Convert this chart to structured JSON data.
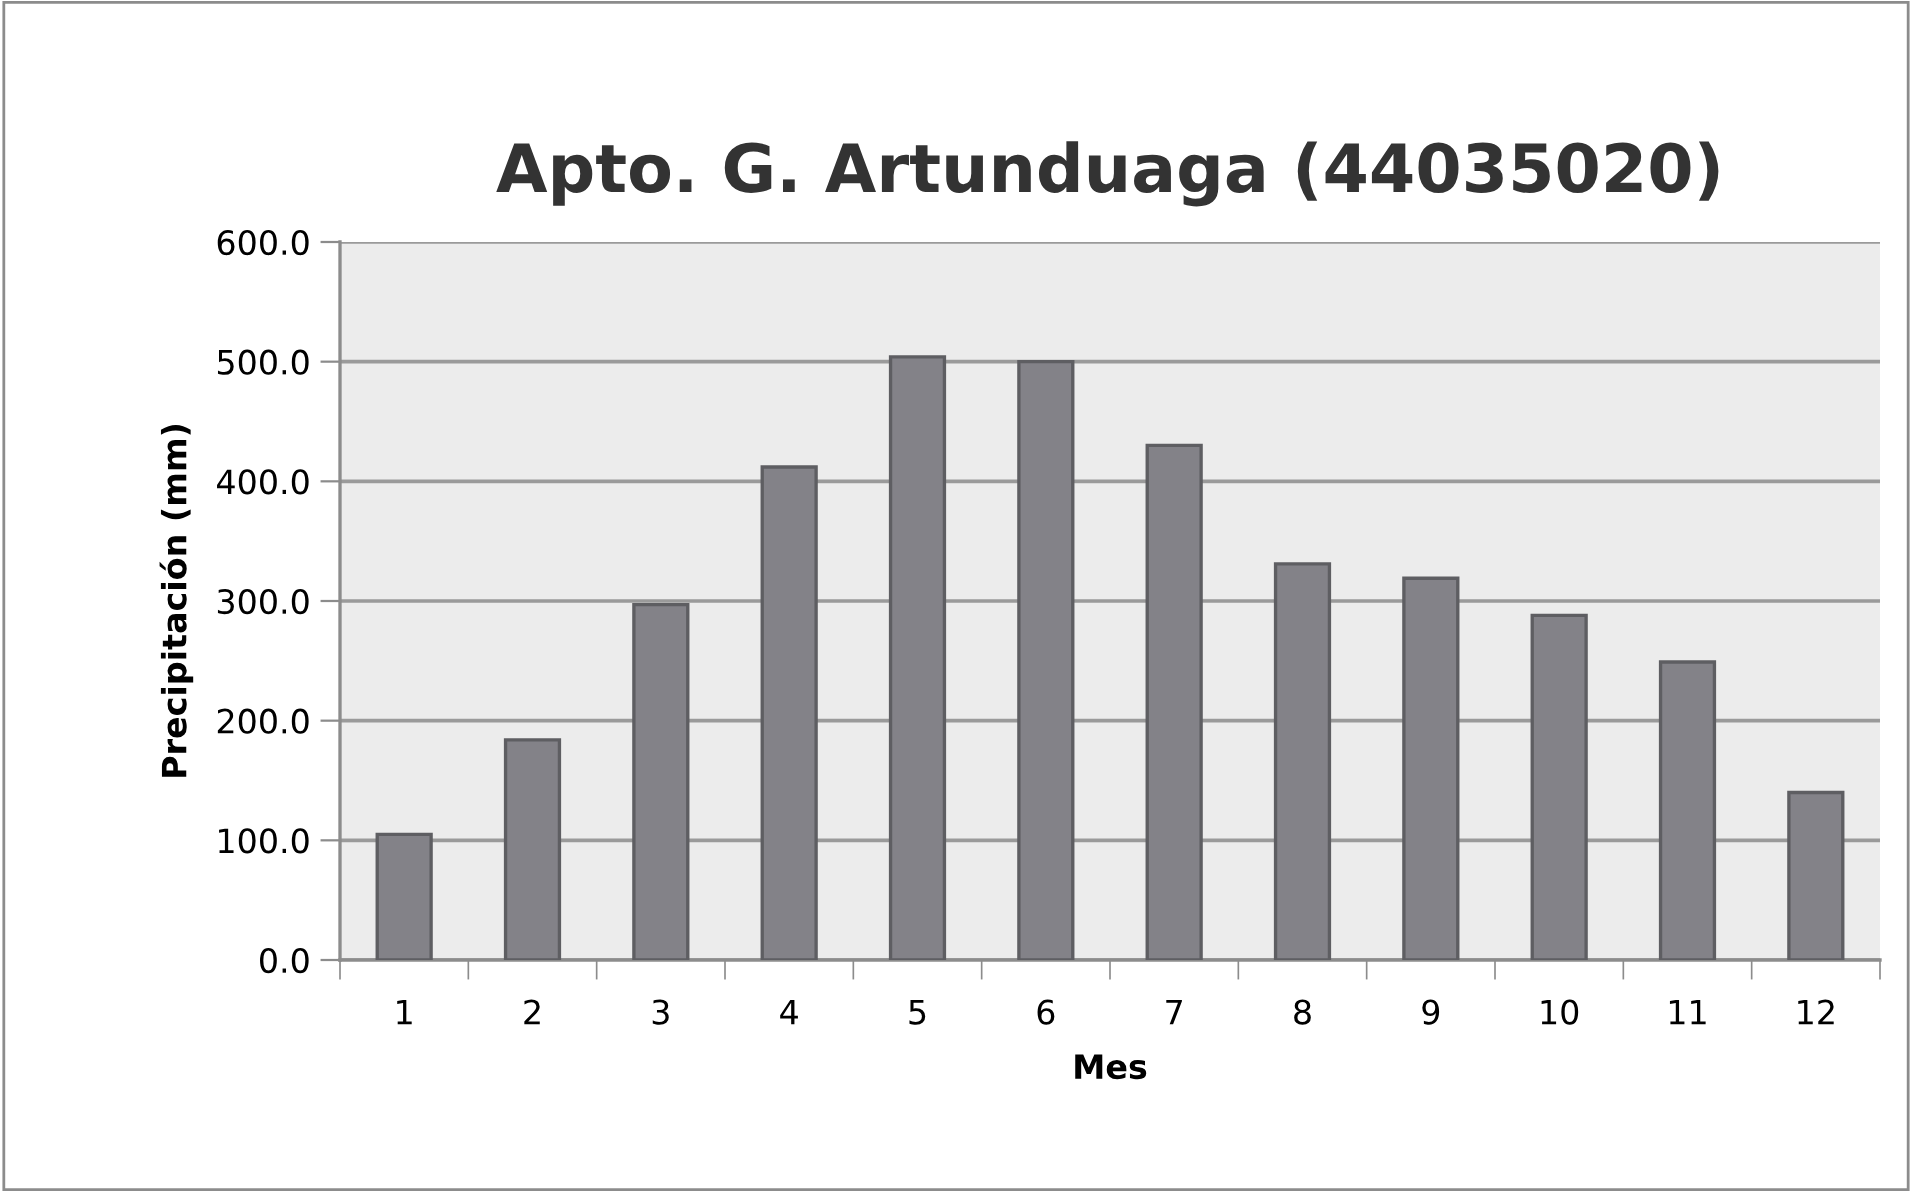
{
  "chart_data": {
    "type": "bar",
    "title": "Apto. G. Artunduaga (44035020)",
    "xlabel": "Mes",
    "ylabel": "Precipitación (mm)",
    "categories": [
      "1",
      "2",
      "3",
      "4",
      "5",
      "6",
      "7",
      "8",
      "9",
      "10",
      "11",
      "12"
    ],
    "values": [
      105,
      184,
      297,
      412,
      504,
      500,
      430,
      331,
      319,
      288,
      249,
      140
    ],
    "color": "#838288",
    "ylim": [
      0,
      600
    ],
    "yticks": [
      {
        "value": 0,
        "label": "0.0"
      },
      {
        "value": 100,
        "label": "100.0"
      },
      {
        "value": 200,
        "label": "200.0"
      },
      {
        "value": 300,
        "label": "300.0"
      },
      {
        "value": 400,
        "label": "400.0"
      },
      {
        "value": 500,
        "label": "500.0"
      },
      {
        "value": 600,
        "label": "600.0"
      }
    ],
    "grid": "y",
    "legend": false
  }
}
